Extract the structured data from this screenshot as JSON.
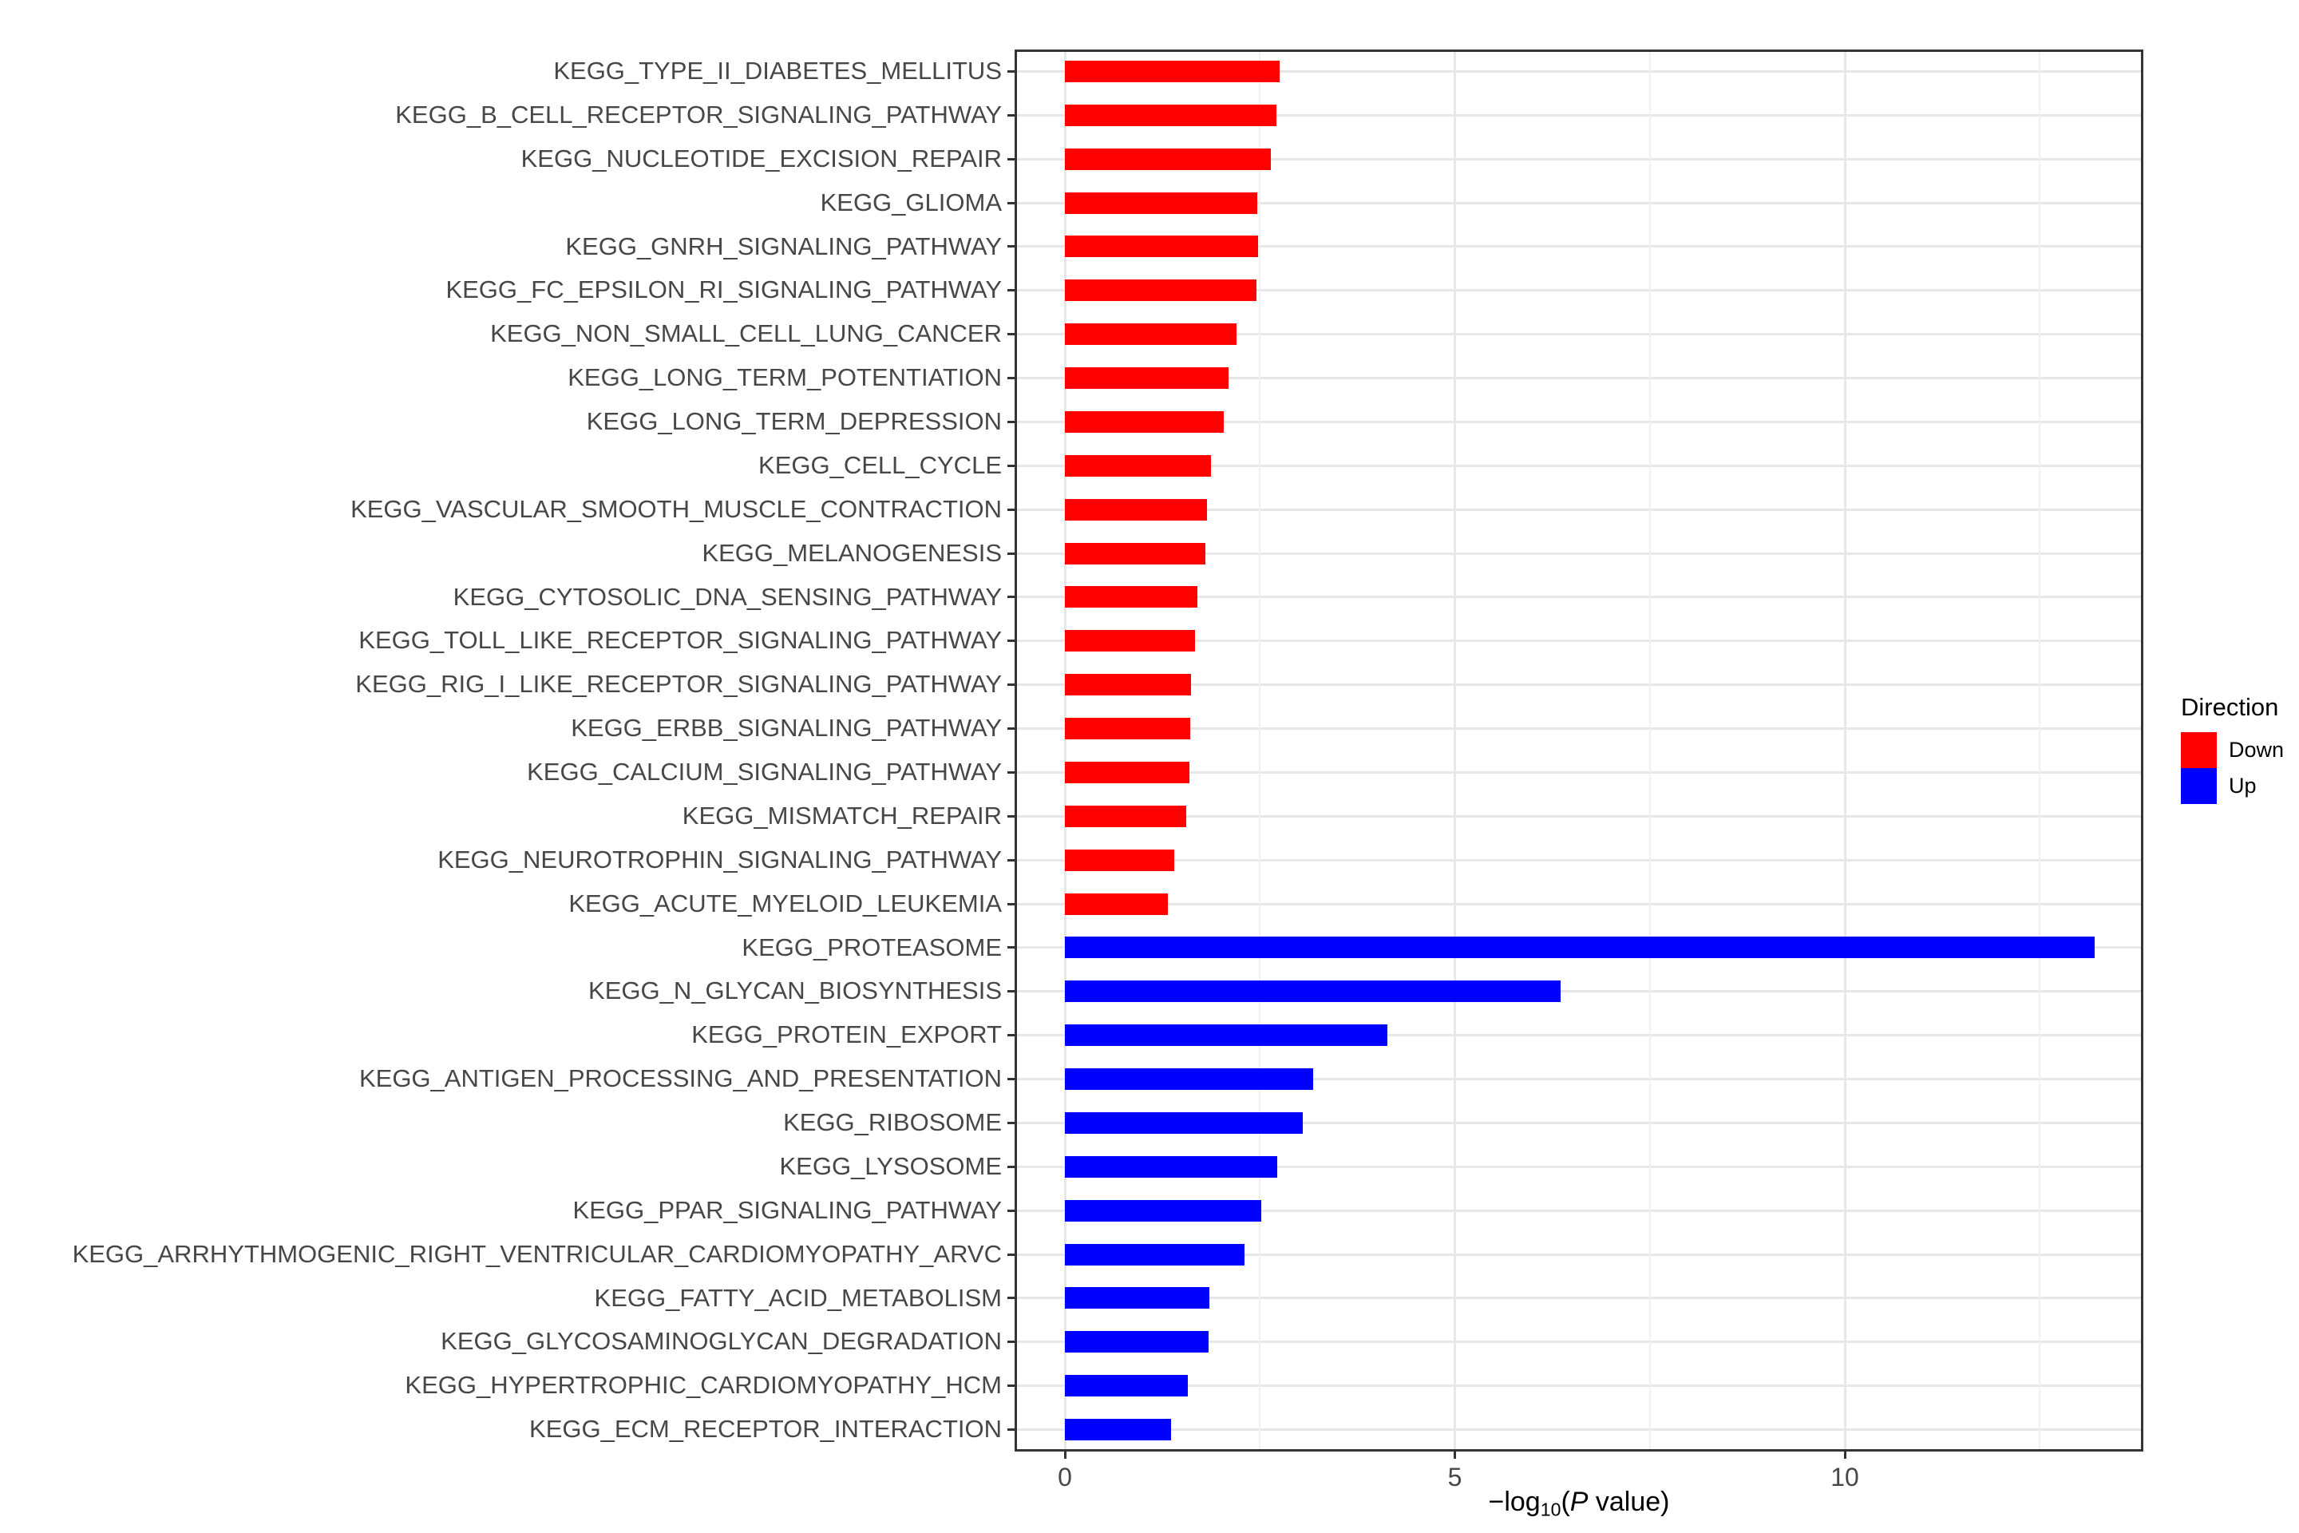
{
  "colors": {
    "down": "#FF0000",
    "up": "#0000FF",
    "axis_text": "#474747",
    "axis_title": "#000000",
    "grid_major": "#E7E7E7",
    "grid_minor": "#F0F0F0",
    "panel_border": "#343434",
    "background": "#FFFFFF"
  },
  "chart_data": {
    "type": "bar",
    "orientation": "horizontal",
    "title": "",
    "xlabel": "-log10(P value)",
    "xlabel_parts": {
      "prefix": "−log",
      "subscript": "10",
      "open_paren": "(",
      "p_italic": "P",
      "suffix": " value)"
    },
    "ylabel": "",
    "x_ticks": [
      "0",
      "5",
      "10"
    ],
    "x_tick_values": [
      0,
      5,
      10
    ],
    "x_minor_gridline_values": [
      2.5,
      7.5,
      12.5
    ],
    "xlim": [
      -0.65,
      13.85
    ],
    "grid": "vertical major+minor and horizontal major per category, light gray on white, black panel border",
    "legend": {
      "title": "Direction",
      "position": "right",
      "entries": [
        {
          "label": "Down",
          "color": "#FF0000"
        },
        {
          "label": "Up",
          "color": "#0000FF"
        }
      ]
    },
    "bars": [
      {
        "label": "KEGG_TYPE_II_DIABETES_MELLITUS",
        "value": 2.75,
        "direction": "Down"
      },
      {
        "label": "KEGG_B_CELL_RECEPTOR_SIGNALING_PATHWAY",
        "value": 2.71,
        "direction": "Down"
      },
      {
        "label": "KEGG_NUCLEOTIDE_EXCISION_REPAIR",
        "value": 2.64,
        "direction": "Down"
      },
      {
        "label": "KEGG_GLIOMA",
        "value": 2.47,
        "direction": "Down"
      },
      {
        "label": "KEGG_GNRH_SIGNALING_PATHWAY",
        "value": 2.48,
        "direction": "Down"
      },
      {
        "label": "KEGG_FC_EPSILON_RI_SIGNALING_PATHWAY",
        "value": 2.46,
        "direction": "Down"
      },
      {
        "label": "KEGG_NON_SMALL_CELL_LUNG_CANCER",
        "value": 2.2,
        "direction": "Down"
      },
      {
        "label": "KEGG_LONG_TERM_POTENTIATION",
        "value": 2.1,
        "direction": "Down"
      },
      {
        "label": "KEGG_LONG_TERM_DEPRESSION",
        "value": 2.04,
        "direction": "Down"
      },
      {
        "label": "KEGG_CELL_CYCLE",
        "value": 1.87,
        "direction": "Down"
      },
      {
        "label": "KEGG_VASCULAR_SMOOTH_MUSCLE_CONTRACTION",
        "value": 1.82,
        "direction": "Down"
      },
      {
        "label": "KEGG_MELANOGENESIS",
        "value": 1.8,
        "direction": "Down"
      },
      {
        "label": "KEGG_CYTOSOLIC_DNA_SENSING_PATHWAY",
        "value": 1.7,
        "direction": "Down"
      },
      {
        "label": "KEGG_TOLL_LIKE_RECEPTOR_SIGNALING_PATHWAY",
        "value": 1.67,
        "direction": "Down"
      },
      {
        "label": "KEGG_RIG_I_LIKE_RECEPTOR_SIGNALING_PATHWAY",
        "value": 1.62,
        "direction": "Down"
      },
      {
        "label": "KEGG_ERBB_SIGNALING_PATHWAY",
        "value": 1.61,
        "direction": "Down"
      },
      {
        "label": "KEGG_CALCIUM_SIGNALING_PATHWAY",
        "value": 1.6,
        "direction": "Down"
      },
      {
        "label": "KEGG_MISMATCH_REPAIR",
        "value": 1.56,
        "direction": "Down"
      },
      {
        "label": "KEGG_NEUROTROPHIN_SIGNALING_PATHWAY",
        "value": 1.4,
        "direction": "Down"
      },
      {
        "label": "KEGG_ACUTE_MYELOID_LEUKEMIA",
        "value": 1.32,
        "direction": "Down"
      },
      {
        "label": "KEGG_PROTEASOME",
        "value": 13.2,
        "direction": "Up"
      },
      {
        "label": "KEGG_N_GLYCAN_BIOSYNTHESIS",
        "value": 6.36,
        "direction": "Up"
      },
      {
        "label": "KEGG_PROTEIN_EXPORT",
        "value": 4.13,
        "direction": "Up"
      },
      {
        "label": "KEGG_ANTIGEN_PROCESSING_AND_PRESENTATION",
        "value": 3.18,
        "direction": "Up"
      },
      {
        "label": "KEGG_RIBOSOME",
        "value": 3.05,
        "direction": "Up"
      },
      {
        "label": "KEGG_LYSOSOME",
        "value": 2.72,
        "direction": "Up"
      },
      {
        "label": "KEGG_PPAR_SIGNALING_PATHWAY",
        "value": 2.52,
        "direction": "Up"
      },
      {
        "label": "KEGG_ARRHYTHMOGENIC_RIGHT_VENTRICULAR_CARDIOMYOPATHY_ARVC",
        "value": 2.3,
        "direction": "Up"
      },
      {
        "label": "KEGG_FATTY_ACID_METABOLISM",
        "value": 1.85,
        "direction": "Up"
      },
      {
        "label": "KEGG_GLYCOSAMINOGLYCAN_DEGRADATION",
        "value": 1.84,
        "direction": "Up"
      },
      {
        "label": "KEGG_HYPERTROPHIC_CARDIOMYOPATHY_HCM",
        "value": 1.58,
        "direction": "Up"
      },
      {
        "label": "KEGG_ECM_RECEPTOR_INTERACTION",
        "value": 1.36,
        "direction": "Up"
      }
    ]
  }
}
